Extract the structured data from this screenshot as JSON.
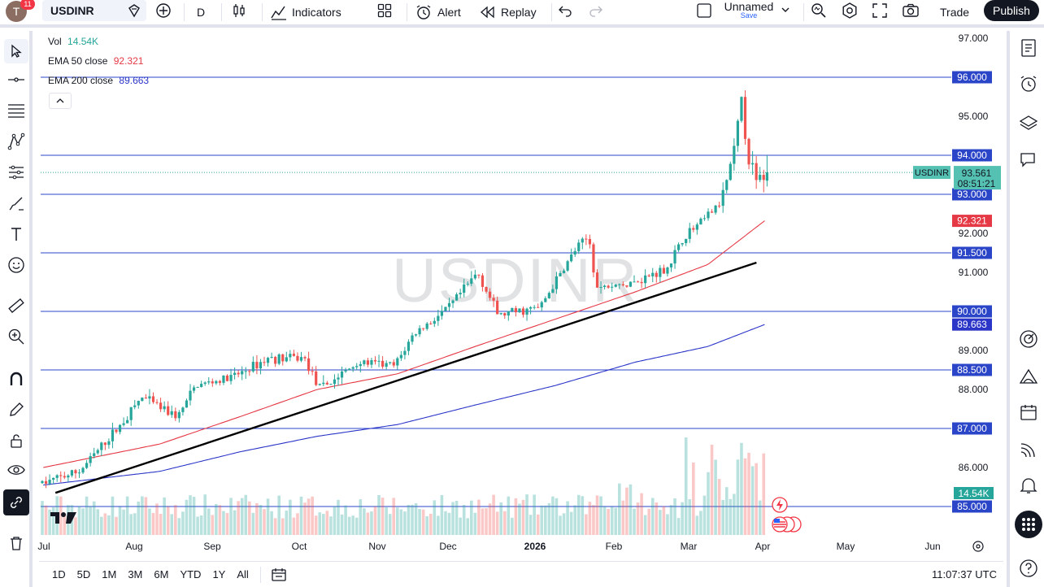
{
  "toolbar": {
    "avatar_letter": "T",
    "notifications": "11",
    "symbol": "USDINR",
    "interval": "D",
    "indicators_label": "Indicators",
    "alert_label": "Alert",
    "replay_label": "Replay",
    "layout_name": "Unnamed",
    "layout_save": "Save",
    "trade_label": "Trade",
    "publish_label": "Publish"
  },
  "legend": {
    "vol_label": "Vol",
    "vol_value": "14.54K",
    "ema50_label": "EMA 50 close",
    "ema50_value": "92.321",
    "ema200_label": "EMA 200 close",
    "ema200_value": "89.663"
  },
  "watermark": "USDINR",
  "bottom": {
    "ranges": [
      "1D",
      "5D",
      "1M",
      "3M",
      "6M",
      "YTD",
      "1Y",
      "All"
    ],
    "clock": "11:07:37 UTC"
  },
  "colors": {
    "up": "#26a69a",
    "down": "#ef5350",
    "ema50": "#e53945",
    "ema200": "#2b35c8",
    "hline": "#2b45c8",
    "trendline": "#000000"
  },
  "chart_data": {
    "type": "candlestick",
    "symbol": "USDINR",
    "y_ticks": [
      "97.000",
      "96.000",
      "95.000",
      "94.000",
      "93.000",
      "92.000",
      "91.500",
      "91.000",
      "90.000",
      "89.000",
      "88.500",
      "88.000",
      "87.000",
      "86.000",
      "85.000"
    ],
    "x_ticks": [
      "Jul",
      "Aug",
      "Sep",
      "Oct",
      "Nov",
      "Dec",
      "2026",
      "Feb",
      "Mar",
      "Apr",
      "May",
      "Jun"
    ],
    "ylim": [
      84.7,
      97.3
    ],
    "horizontal_levels": [
      96.0,
      94.0,
      93.0,
      91.5,
      90.0,
      88.5,
      87.0,
      85.0
    ],
    "horizontal_level_labels": [
      "96.000",
      "94.000",
      "93.000",
      "91.500",
      "90.000",
      "88.500",
      "87.000",
      "85.000"
    ],
    "last_price": "93.561",
    "countdown": "08:51:21",
    "price_label_tag": "USDINR",
    "ema50_tag": "92.321",
    "ema200_tag": "89.663",
    "volume_tag": "14.54K",
    "trendline": {
      "start": [
        "2025-07-01",
        85.35
      ],
      "end": [
        "2026-04-06",
        91.25
      ]
    },
    "price_path": [
      [
        "2025-07-01",
        85.6
      ],
      [
        "2025-07-15",
        85.9
      ],
      [
        "2025-07-31",
        87.1
      ],
      [
        "2025-08-08",
        87.8
      ],
      [
        "2025-08-22",
        87.3
      ],
      [
        "2025-08-29",
        88.1
      ],
      [
        "2025-09-12",
        88.3
      ],
      [
        "2025-09-26",
        88.8
      ],
      [
        "2025-10-10",
        88.8
      ],
      [
        "2025-10-16",
        88.0
      ],
      [
        "2025-10-31",
        88.7
      ],
      [
        "2025-11-14",
        88.6
      ],
      [
        "2025-11-21",
        89.4
      ],
      [
        "2025-12-05",
        90.1
      ],
      [
        "2025-12-16",
        91.0
      ],
      [
        "2025-12-24",
        89.9
      ],
      [
        "2026-01-09",
        90.1
      ],
      [
        "2026-01-23",
        91.6
      ],
      [
        "2026-01-28",
        91.9
      ],
      [
        "2026-01-31",
        90.6
      ],
      [
        "2026-02-13",
        90.7
      ],
      [
        "2026-02-27",
        91.1
      ],
      [
        "2026-03-06",
        91.9
      ],
      [
        "2026-03-13",
        92.3
      ],
      [
        "2026-03-20",
        92.8
      ],
      [
        "2026-03-25",
        94.0
      ],
      [
        "2026-03-28",
        95.3
      ],
      [
        "2026-03-31",
        93.9
      ],
      [
        "2026-04-03",
        93.2
      ],
      [
        "2026-04-06",
        93.56
      ]
    ],
    "ema50_path": [
      [
        "2025-07-01",
        86.0
      ],
      [
        "2025-08-15",
        86.6
      ],
      [
        "2025-09-15",
        87.3
      ],
      [
        "2025-10-15",
        88.0
      ],
      [
        "2025-11-15",
        88.4
      ],
      [
        "2025-12-15",
        89.1
      ],
      [
        "2026-01-15",
        89.8
      ],
      [
        "2026-02-15",
        90.5
      ],
      [
        "2026-03-15",
        91.2
      ],
      [
        "2026-04-06",
        92.321
      ]
    ],
    "ema200_path": [
      [
        "2025-07-01",
        85.55
      ],
      [
        "2025-08-15",
        85.9
      ],
      [
        "2025-09-15",
        86.4
      ],
      [
        "2025-10-15",
        86.8
      ],
      [
        "2025-11-15",
        87.1
      ],
      [
        "2025-12-15",
        87.6
      ],
      [
        "2026-01-15",
        88.1
      ],
      [
        "2026-02-15",
        88.7
      ],
      [
        "2026-03-15",
        89.1
      ],
      [
        "2026-04-06",
        89.663
      ]
    ]
  }
}
